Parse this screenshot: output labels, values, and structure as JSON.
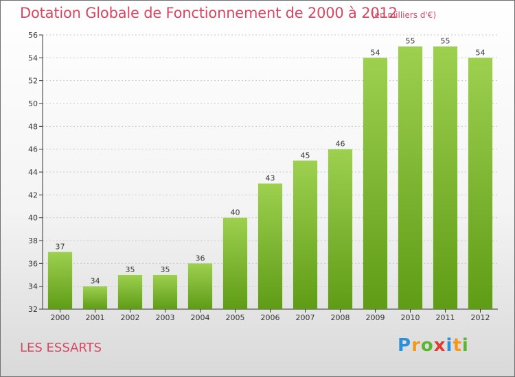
{
  "header": {
    "title": "Dotation Globale de Fonctionnement de 2000 à 2012",
    "unit": "(en milliers d'€)"
  },
  "footer": {
    "place": "LES ESSARTS",
    "logo": [
      "P",
      "r",
      "o",
      "x",
      "i",
      "t",
      "i"
    ]
  },
  "colors": {
    "title": "#d94662",
    "bar_top": "#9dd04f",
    "bar_bottom": "#5f9c16",
    "axis": "#333333",
    "grid": "#c8c8c8"
  },
  "chart_data": {
    "type": "bar",
    "categories": [
      "2000",
      "2001",
      "2002",
      "2003",
      "2004",
      "2005",
      "2006",
      "2007",
      "2008",
      "2009",
      "2010",
      "2011",
      "2012"
    ],
    "values": [
      37,
      34,
      35,
      35,
      36,
      40,
      43,
      45,
      46,
      54,
      55,
      55,
      54
    ],
    "ylim": [
      32,
      56
    ],
    "yticks": [
      32,
      34,
      36,
      38,
      40,
      42,
      44,
      46,
      48,
      50,
      52,
      54,
      56
    ],
    "grid": true,
    "title": "Dotation Globale de Fonctionnement de 2000 à 2012",
    "xlabel": "",
    "ylabel": ""
  }
}
